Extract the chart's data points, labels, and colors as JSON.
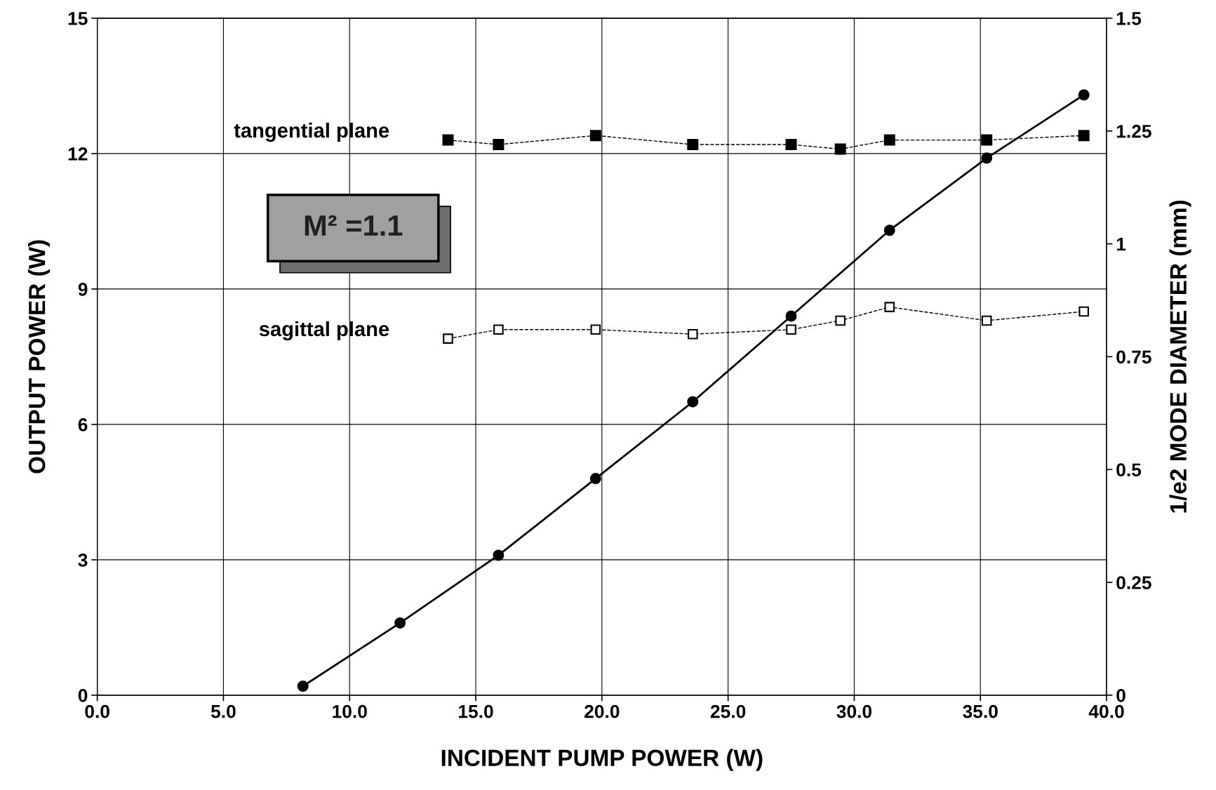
{
  "chart_data": {
    "type": "line",
    "xlabel": "INCIDENT PUMP POWER (W)",
    "ylabel": "OUTPUT POWER (W)",
    "y2label": "1/e2 MODE DIAMETER (mm)",
    "xlim": [
      0,
      40
    ],
    "xticks": [
      {
        "value": 0,
        "label": "0.0"
      },
      {
        "value": 5,
        "label": "5.0"
      },
      {
        "value": 10,
        "label": "10.0"
      },
      {
        "value": 15,
        "label": "15.0"
      },
      {
        "value": 20,
        "label": "20.0"
      },
      {
        "value": 25,
        "label": "25.0"
      },
      {
        "value": 30,
        "label": "30.0"
      },
      {
        "value": 35,
        "label": "35.0"
      },
      {
        "value": 40,
        "label": "40.0"
      }
    ],
    "ylim": [
      0,
      15
    ],
    "yticks": [
      0,
      3,
      6,
      9,
      12,
      15
    ],
    "y2lim": [
      0,
      1.5
    ],
    "y2ticks": [
      0,
      0.25,
      0.5,
      0.75,
      1,
      1.25,
      1.5
    ],
    "grid": true,
    "legend": false,
    "annotations": [
      "M² =1.1"
    ],
    "series": [
      {
        "color": "#000000",
        "marker": "circle",
        "line_style": "solid",
        "x": [
          8.15,
          12.0,
          15.9,
          19.75,
          23.6,
          27.5,
          31.4,
          35.25,
          39.1
        ],
        "values": [
          0.2,
          1.6,
          3.1,
          4.8,
          6.5,
          8.4,
          10.3,
          11.9,
          13.3
        ]
      },
      {
        "name": "tangential plane",
        "axis": "y2",
        "color": "#000000",
        "marker": "square",
        "line_style": "dashed",
        "x": [
          13.9,
          15.9,
          19.75,
          23.6,
          27.5,
          29.45,
          31.4,
          35.25,
          39.1
        ],
        "values": [
          1.23,
          1.22,
          1.24,
          1.22,
          1.22,
          1.21,
          1.23,
          1.23,
          1.24
        ]
      },
      {
        "name": "sagittal plane",
        "axis": "y2",
        "color": "#000000",
        "marker": "square",
        "line_style": "dashed",
        "x": [
          13.9,
          15.9,
          19.75,
          23.6,
          27.5,
          29.45,
          31.4,
          35.25,
          39.1
        ],
        "values": [
          0.79,
          0.81,
          0.81,
          0.8,
          0.81,
          0.83,
          0.86,
          0.83,
          0.85
        ]
      }
    ]
  }
}
